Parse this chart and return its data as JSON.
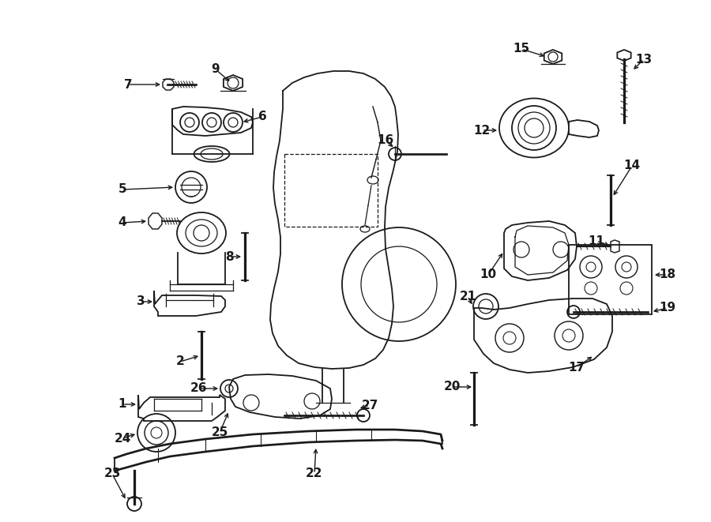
{
  "bg_color": "#ffffff",
  "line_color": "#1a1a1a",
  "fig_width": 9.0,
  "fig_height": 6.61,
  "dpi": 100,
  "label_fontsize": 11,
  "arrow_lw": 1.0,
  "parts_lw": 1.3
}
